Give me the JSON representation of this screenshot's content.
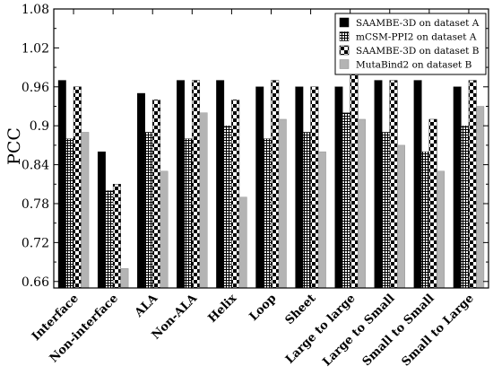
{
  "chart_data": {
    "type": "bar",
    "title": "",
    "xlabel": "",
    "ylabel": "PCC",
    "ylim": [
      0.65,
      1.08
    ],
    "yticks": [
      "0.66",
      "0.72",
      "0.78",
      "0.84",
      "0.9",
      "0.96",
      "1.02",
      "1.08"
    ],
    "ytick_values": [
      0.66,
      0.72,
      0.78,
      0.84,
      0.9,
      0.96,
      1.02,
      1.08
    ],
    "grid": false,
    "legend_position": "top-right",
    "categories": [
      "Interface",
      "Non-interface",
      "ALA",
      "Non-ALA",
      "Helix",
      "Loop",
      "Sheet",
      "Large to large",
      "Large to Small",
      "Small to Small",
      "Small to Large"
    ],
    "series": [
      {
        "name": "SAAMBE-3D on dataset A",
        "pattern": "solid-black",
        "values": [
          0.97,
          0.86,
          0.95,
          0.97,
          0.97,
          0.96,
          0.96,
          0.96,
          0.97,
          0.97,
          0.96
        ]
      },
      {
        "name": "mCSM-PPI2 on dataset A",
        "pattern": "grid",
        "values": [
          0.88,
          0.8,
          0.89,
          0.88,
          0.9,
          0.88,
          0.89,
          0.92,
          0.89,
          0.86,
          0.9
        ]
      },
      {
        "name": "SAAMBE-3D on dataset B",
        "pattern": "checker",
        "values": [
          0.96,
          0.81,
          0.94,
          0.97,
          0.94,
          0.97,
          0.96,
          0.98,
          0.97,
          0.91,
          0.97
        ]
      },
      {
        "name": "MutaBind2 on dataset B",
        "pattern": "solid-gray",
        "values": [
          0.89,
          0.68,
          0.83,
          0.92,
          0.79,
          0.91,
          0.86,
          0.91,
          0.87,
          0.83,
          0.93
        ]
      }
    ],
    "colors": {
      "black": "#000000",
      "gray": "#b4b4b4"
    }
  }
}
